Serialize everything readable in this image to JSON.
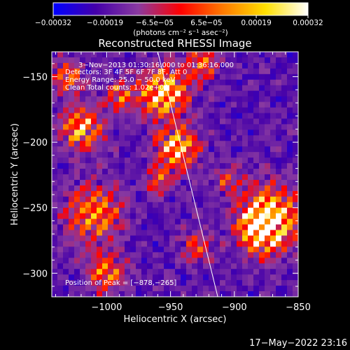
{
  "chart_data": {
    "type": "heatmap",
    "title": "Reconstructed RHESSI Image",
    "xlabel": "Heliocentric X (arcsec)",
    "ylabel": "Heliocentric Y (arcsec)",
    "xlim": [
      -1043,
      -850
    ],
    "ylim": [
      -318,
      -131
    ],
    "x_ticks": [
      -1000,
      -950,
      -900,
      -850
    ],
    "x_tick_labels": [
      "−1000",
      "−950",
      "−900",
      "−850"
    ],
    "y_ticks": [
      -300,
      -250,
      -200,
      -150
    ],
    "y_tick_labels": [
      "−300",
      "−250",
      "−200",
      "−150"
    ],
    "colorbar": {
      "range": [
        -0.00032,
        0.00032
      ],
      "ticks": [
        -0.00032,
        -0.00019,
        -6.5e-05,
        6.5e-05,
        0.00019,
        0.00032
      ],
      "tick_labels": [
        "−0.00032",
        "−0.00019",
        "−6.5e−05",
        "6.5e−05",
        "0.00019",
        "0.00032"
      ],
      "unit_label": "(photons cm⁻² s⁻¹ asec⁻²)",
      "colors": [
        "#0000ff",
        "#4400aa",
        "#8a3aa0",
        "#ff0000",
        "#ff7a00",
        "#ffe000",
        "#ffffff"
      ]
    },
    "annotations": [
      "3−Nov−2013 01:30:16.000 to 01:36:16.000",
      "Detectors: 3F 4F 5F 6F 7F 8F, Att 0",
      "Energy Range: 25.0 − 50.0 keV",
      "Clean    Total counts: 1.02e+04",
      "Position of Peak = [−878,−265]"
    ],
    "limb_line": {
      "x": [
        -960,
        -913
      ],
      "y": [
        -131,
        -318
      ]
    },
    "peak": {
      "x": -878,
      "y": -265
    },
    "sources": [
      {
        "x": -878,
        "y": -265,
        "r": 14,
        "level": 0.95
      },
      {
        "x": -870,
        "y": -255,
        "r": 20,
        "level": 0.55
      },
      {
        "x": -955,
        "y": -162,
        "r": 15,
        "level": 0.85
      },
      {
        "x": -945,
        "y": -205,
        "r": 13,
        "level": 0.8
      },
      {
        "x": -1020,
        "y": -190,
        "r": 13,
        "level": 0.7
      },
      {
        "x": -1010,
        "y": -255,
        "r": 18,
        "level": 0.55
      },
      {
        "x": -1000,
        "y": -300,
        "r": 12,
        "level": 0.5
      },
      {
        "x": -925,
        "y": -140,
        "r": 10,
        "level": 0.45
      },
      {
        "x": -990,
        "y": -165,
        "r": 9,
        "level": 0.45
      },
      {
        "x": -1030,
        "y": -150,
        "r": 10,
        "level": 0.5
      },
      {
        "x": -930,
        "y": -280,
        "r": 10,
        "level": 0.35
      },
      {
        "x": -960,
        "y": -230,
        "r": 8,
        "level": 0.4
      },
      {
        "x": -905,
        "y": -230,
        "r": 10,
        "level": 0.3
      }
    ]
  },
  "footer": {
    "timestamp": "17−May−2022 23:16"
  }
}
